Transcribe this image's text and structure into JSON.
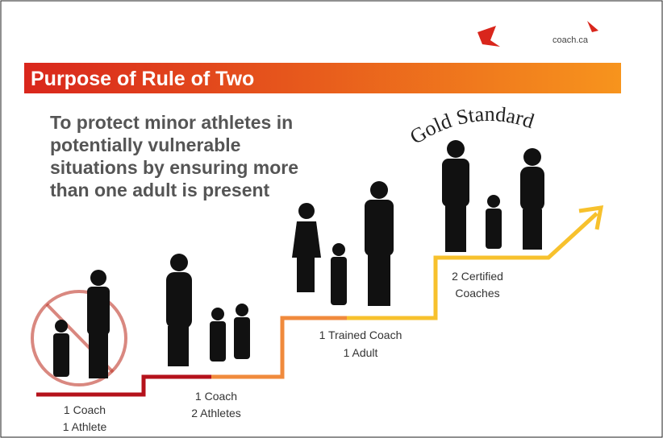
{
  "header": {
    "logo": "coach.ca"
  },
  "title": "Purpose of Rule of Two",
  "body": [
    "To protect minor athletes in",
    "potentially vulnerable",
    "situations by ensuring more",
    "than one adult is present"
  ],
  "badge": "Gold Standard",
  "steps": [
    {
      "lines": [
        "1 Coach",
        "1 Athlete"
      ]
    },
    {
      "lines": [
        "1 Coach",
        "2 Athletes"
      ]
    },
    {
      "lines": [
        "1 Trained Coach",
        "1 Adult"
      ]
    },
    {
      "lines": [
        "2 Certified",
        "Coaches"
      ]
    }
  ]
}
